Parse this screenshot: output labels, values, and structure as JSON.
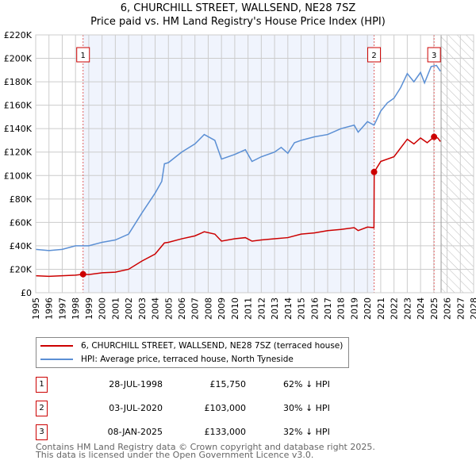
{
  "chart_data": {
    "type": "line",
    "title": "6, CHURCHILL STREET, WALLSEND, NE28 7SZ",
    "subtitle": "Price paid vs. HM Land Registry's House Price Index (HPI)",
    "xlim": [
      1995,
      2028
    ],
    "ylim": [
      0,
      220000
    ],
    "x_ticks": [
      "1995",
      "1996",
      "1997",
      "1998",
      "1999",
      "2000",
      "2001",
      "2002",
      "2003",
      "2004",
      "2005",
      "2006",
      "2007",
      "2008",
      "2009",
      "2010",
      "2011",
      "2012",
      "2013",
      "2014",
      "2015",
      "2016",
      "2017",
      "2018",
      "2019",
      "2020",
      "2021",
      "2022",
      "2023",
      "2024",
      "2025",
      "2026",
      "2027",
      "2028"
    ],
    "y_ticks": [
      {
        "v": 0,
        "l": "£0"
      },
      {
        "v": 20000,
        "l": "£20K"
      },
      {
        "v": 40000,
        "l": "£40K"
      },
      {
        "v": 60000,
        "l": "£60K"
      },
      {
        "v": 80000,
        "l": "£80K"
      },
      {
        "v": 100000,
        "l": "£100K"
      },
      {
        "v": 120000,
        "l": "£120K"
      },
      {
        "v": 140000,
        "l": "£140K"
      },
      {
        "v": 160000,
        "l": "£160K"
      },
      {
        "v": 180000,
        "l": "£180K"
      },
      {
        "v": 200000,
        "l": "£200K"
      },
      {
        "v": 220000,
        "l": "£220K"
      }
    ],
    "grid": true,
    "shaded_range": [
      1998.57,
      2020.5
    ],
    "forecast_from": 2025.55,
    "series": [
      {
        "name": "6, CHURCHILL STREET, WALLSEND, NE28 7SZ (terraced house)",
        "color": "#cc0000",
        "points": [
          [
            1995,
            14500
          ],
          [
            1996,
            14000
          ],
          [
            1997,
            14500
          ],
          [
            1998,
            15000
          ],
          [
            1998.57,
            15750
          ],
          [
            1999,
            15500
          ],
          [
            2000,
            17000
          ],
          [
            2001,
            17500
          ],
          [
            2002,
            20000
          ],
          [
            2003,
            27000
          ],
          [
            2004,
            33000
          ],
          [
            2004.7,
            42500
          ],
          [
            2005,
            43000
          ],
          [
            2006,
            46000
          ],
          [
            2007,
            48500
          ],
          [
            2007.7,
            52000
          ],
          [
            2008.5,
            50000
          ],
          [
            2009,
            44000
          ],
          [
            2010,
            46000
          ],
          [
            2010.8,
            47000
          ],
          [
            2011.3,
            44000
          ],
          [
            2012,
            45000
          ],
          [
            2013,
            46000
          ],
          [
            2014,
            47000
          ],
          [
            2015,
            50000
          ],
          [
            2016,
            51000
          ],
          [
            2017,
            53000
          ],
          [
            2018,
            54000
          ],
          [
            2019,
            55500
          ],
          [
            2019.3,
            53000
          ],
          [
            2020,
            56000
          ],
          [
            2020.49,
            55500
          ],
          [
            2020.51,
            103000
          ],
          [
            2021,
            112000
          ],
          [
            2022,
            116000
          ],
          [
            2023,
            131000
          ],
          [
            2023.5,
            127000
          ],
          [
            2024,
            132000
          ],
          [
            2024.5,
            128000
          ],
          [
            2025.02,
            133000
          ],
          [
            2025.3,
            132000
          ],
          [
            2025.5,
            129000
          ]
        ]
      },
      {
        "name": "HPI: Average price, terraced house, North Tyneside",
        "color": "#5b8fd4",
        "points": [
          [
            1995,
            37000
          ],
          [
            1996,
            36000
          ],
          [
            1997,
            37000
          ],
          [
            1998,
            40000
          ],
          [
            1999,
            40000
          ],
          [
            2000,
            43000
          ],
          [
            2001,
            45000
          ],
          [
            2002,
            50000
          ],
          [
            2003,
            68000
          ],
          [
            2004,
            85000
          ],
          [
            2004.5,
            95000
          ],
          [
            2004.7,
            110000
          ],
          [
            2005,
            111000
          ],
          [
            2006,
            120000
          ],
          [
            2007,
            127000
          ],
          [
            2007.7,
            135000
          ],
          [
            2008.5,
            130000
          ],
          [
            2009,
            114000
          ],
          [
            2010,
            118000
          ],
          [
            2010.8,
            122000
          ],
          [
            2011.3,
            112000
          ],
          [
            2012,
            116000
          ],
          [
            2013,
            120000
          ],
          [
            2013.5,
            124000
          ],
          [
            2014,
            119000
          ],
          [
            2014.5,
            128000
          ],
          [
            2015,
            130000
          ],
          [
            2016,
            133000
          ],
          [
            2017,
            135000
          ],
          [
            2018,
            140000
          ],
          [
            2019,
            143000
          ],
          [
            2019.3,
            137000
          ],
          [
            2020,
            146000
          ],
          [
            2020.5,
            143000
          ],
          [
            2021,
            155000
          ],
          [
            2021.5,
            162000
          ],
          [
            2022,
            166000
          ],
          [
            2022.5,
            175000
          ],
          [
            2023,
            187000
          ],
          [
            2023.5,
            180000
          ],
          [
            2024,
            188000
          ],
          [
            2024.3,
            179000
          ],
          [
            2024.8,
            193000
          ],
          [
            2025.2,
            194000
          ],
          [
            2025.5,
            189000
          ]
        ]
      }
    ],
    "sales": [
      {
        "n": "1",
        "x": 1998.57,
        "y": 15750,
        "date": "28-JUL-1998",
        "price": "£15,750",
        "pct": "62% ↓ HPI"
      },
      {
        "n": "2",
        "x": 2020.5,
        "y": 103000,
        "date": "03-JUL-2020",
        "price": "£103,000",
        "pct": "30% ↓ HPI"
      },
      {
        "n": "3",
        "x": 2025.02,
        "y": 133000,
        "date": "08-JAN-2025",
        "price": "£133,000",
        "pct": "32% ↓ HPI"
      }
    ]
  },
  "footer": {
    "line1": "Contains HM Land Registry data © Crown copyright and database right 2025.",
    "line2": "This data is licensed under the Open Government Licence v3.0."
  }
}
